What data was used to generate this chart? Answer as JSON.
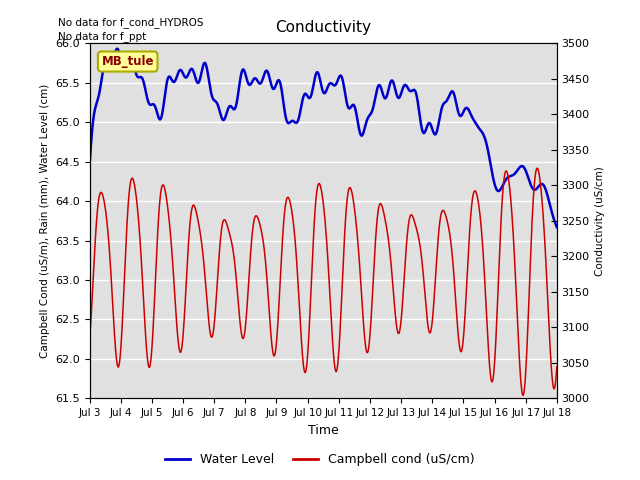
{
  "title": "Conductivity",
  "xlabel": "Time",
  "ylabel_left": "Campbell Cond (uS/m), Rain (mm), Water Level (cm)",
  "ylabel_right": "Conductivity (uS/cm)",
  "annotation1": "No data for f_cond_HYDROS",
  "annotation2": "No data for f_ppt",
  "box_label": "MB_tule",
  "ylim_left": [
    61.5,
    66.0
  ],
  "ylim_right": [
    3000,
    3500
  ],
  "bg_color": "#e0e0e0",
  "blue_color": "#0000cc",
  "red_color": "#cc0000",
  "legend_blue": "Water Level",
  "legend_red": "Campbell cond (uS/cm)",
  "xtick_start": 3,
  "xtick_end": 18,
  "yticks_left": [
    61.5,
    62.0,
    62.5,
    63.0,
    63.5,
    64.0,
    64.5,
    65.0,
    65.5,
    66.0
  ],
  "yticks_right": [
    3000,
    3050,
    3100,
    3150,
    3200,
    3250,
    3300,
    3350,
    3400,
    3450,
    3500
  ]
}
